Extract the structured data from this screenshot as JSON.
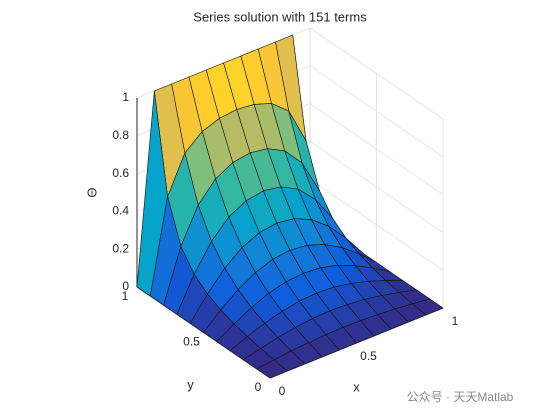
{
  "chart_data": {
    "type": "surface",
    "title": "Series solution with 151 terms",
    "xlabel": "x",
    "ylabel": "y",
    "zlabel": "Θ",
    "x": [
      0,
      0.1,
      0.2,
      0.3,
      0.4,
      0.5,
      0.6,
      0.7,
      0.8,
      0.9,
      1
    ],
    "y": [
      0,
      0.1,
      0.2,
      0.3,
      0.4,
      0.5,
      0.6,
      0.7,
      0.8,
      0.9,
      1
    ],
    "z": [
      [
        0,
        0,
        0,
        0,
        0,
        0,
        0,
        0,
        0,
        0,
        0
      ],
      [
        0,
        0.011,
        0.021,
        0.028,
        0.033,
        0.035,
        0.033,
        0.028,
        0.021,
        0.011,
        0
      ],
      [
        0,
        0.023,
        0.044,
        0.06,
        0.07,
        0.074,
        0.07,
        0.06,
        0.044,
        0.023,
        0
      ],
      [
        0,
        0.038,
        0.071,
        0.097,
        0.114,
        0.119,
        0.114,
        0.097,
        0.071,
        0.038,
        0
      ],
      [
        0,
        0.056,
        0.106,
        0.145,
        0.168,
        0.176,
        0.168,
        0.145,
        0.106,
        0.056,
        0
      ],
      [
        0,
        0.082,
        0.153,
        0.206,
        0.239,
        0.25,
        0.239,
        0.206,
        0.153,
        0.082,
        0
      ],
      [
        0,
        0.118,
        0.218,
        0.29,
        0.332,
        0.345,
        0.332,
        0.29,
        0.218,
        0.118,
        0
      ],
      [
        0,
        0.174,
        0.312,
        0.403,
        0.452,
        0.468,
        0.452,
        0.403,
        0.312,
        0.174,
        0
      ],
      [
        0,
        0.274,
        0.456,
        0.557,
        0.606,
        0.621,
        0.606,
        0.557,
        0.456,
        0.274,
        0
      ],
      [
        0,
        0.489,
        0.683,
        0.76,
        0.792,
        0.802,
        0.792,
        0.76,
        0.683,
        0.489,
        0
      ],
      [
        0,
        1,
        1,
        1,
        1,
        1,
        1,
        1,
        1,
        1,
        0
      ]
    ],
    "xlim": [
      0,
      1
    ],
    "ylim": [
      0,
      1
    ],
    "zlim": [
      0,
      1
    ],
    "xticks": [
      0,
      0.5,
      1
    ],
    "yticks": [
      0,
      0.5,
      1
    ],
    "zticks": [
      0,
      0.2,
      0.4,
      0.6,
      0.8,
      1
    ],
    "grid": true,
    "colormap": [
      "#352a87",
      "#0f5cdd",
      "#1481d6",
      "#06a4ca",
      "#2eb7a4",
      "#87bf77",
      "#d1bb59",
      "#fec832",
      "#f9fb0e"
    ],
    "watermark": "公众号 · 天天Matlab"
  }
}
